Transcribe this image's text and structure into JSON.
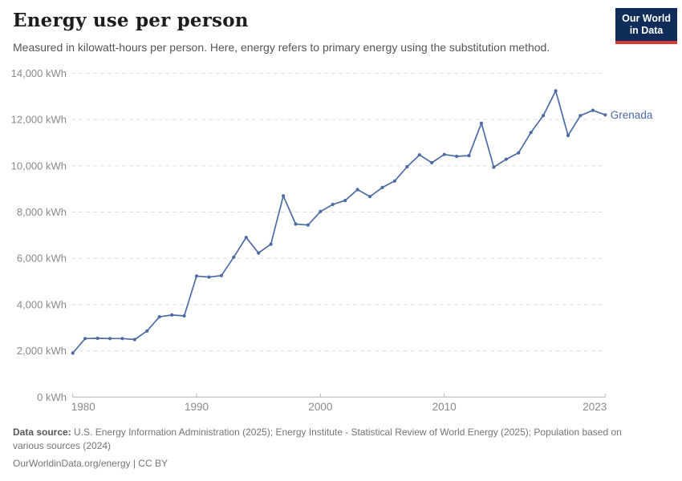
{
  "header": {
    "title": "Energy use per person",
    "subtitle": "Measured in kilowatt-hours per person. Here, energy refers to primary energy using the substitution method.",
    "logo_line1": "Our World",
    "logo_line2": "in Data",
    "logo_bg_color": "#102d5a",
    "logo_bar_color": "#d63c32"
  },
  "chart_data": {
    "type": "line",
    "title": "Energy use per person",
    "subtitle": "Measured in kilowatt-hours per person. Here, energy refers to primary energy using the substitution method.",
    "entity": "Grenada",
    "unit": "kWh",
    "line_color": "#4c6ba5",
    "grid": "dashed horizontal",
    "xlim": [
      1980,
      2023
    ],
    "ylim": [
      0,
      14000
    ],
    "x": [
      1980,
      1981,
      1982,
      1983,
      1984,
      1985,
      1986,
      1987,
      1988,
      1989,
      1990,
      1991,
      1992,
      1993,
      1994,
      1995,
      1996,
      1997,
      1998,
      1999,
      2000,
      2001,
      2002,
      2003,
      2004,
      2005,
      2006,
      2007,
      2008,
      2009,
      2010,
      2011,
      2012,
      2013,
      2014,
      2015,
      2016,
      2017,
      2018,
      2019,
      2020,
      2021,
      2022,
      2023
    ],
    "series": [
      {
        "name": "Grenada",
        "color": "#4c6ba5",
        "values": [
          1900,
          2530,
          2540,
          2530,
          2530,
          2490,
          2860,
          3470,
          3550,
          3510,
          5230,
          5190,
          5250,
          6050,
          6900,
          6230,
          6610,
          8700,
          7480,
          7440,
          8020,
          8330,
          8500,
          8970,
          8670,
          9060,
          9340,
          9960,
          10470,
          10130,
          10490,
          10410,
          10440,
          11840,
          9940,
          10280,
          10560,
          11440,
          12170,
          13240,
          11310,
          12170,
          12400,
          12200
        ]
      }
    ],
    "yticks": [
      {
        "value": 0,
        "label": "0 kWh"
      },
      {
        "value": 2000,
        "label": "2,000 kWh"
      },
      {
        "value": 4000,
        "label": "4,000 kWh"
      },
      {
        "value": 6000,
        "label": "6,000 kWh"
      },
      {
        "value": 8000,
        "label": "8,000 kWh"
      },
      {
        "value": 10000,
        "label": "10,000 kWh"
      },
      {
        "value": 12000,
        "label": "12,000 kWh"
      },
      {
        "value": 14000,
        "label": "14,000 kWh"
      }
    ],
    "xticks": [
      {
        "year": 1980,
        "label": "1980"
      },
      {
        "year": 1990,
        "label": "1990"
      },
      {
        "year": 2000,
        "label": "2000"
      },
      {
        "year": 2010,
        "label": "2010"
      },
      {
        "year": 2023,
        "label": "2023"
      }
    ],
    "end_label": "Grenada"
  },
  "footer": {
    "source_label": "Data source:",
    "source_text": "U.S. Energy Information Administration (2025); Energy Institute - Statistical Review of World Energy (2025); Population based on various sources (2024)",
    "license_line": "OurWorldinData.org/energy | CC BY"
  }
}
